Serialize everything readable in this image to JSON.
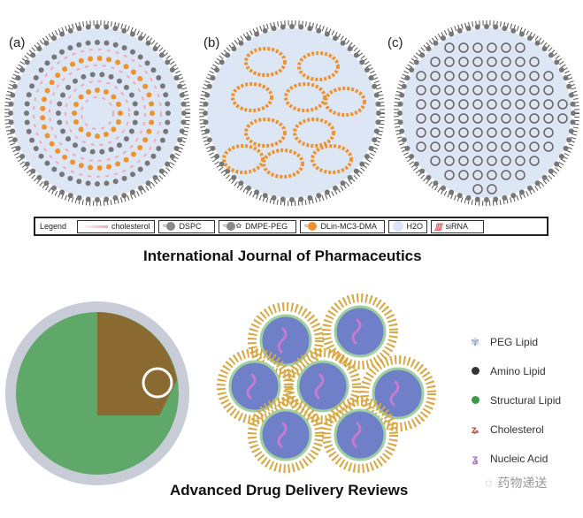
{
  "panels": {
    "a": "(a)",
    "b": "(b)",
    "c": "(c)"
  },
  "legend": {
    "title": "Legend",
    "items": [
      "cholesterol",
      "DSPC",
      "DMPE-PEG",
      "DLin-MC3-DMA",
      "H2O",
      "siRNA"
    ]
  },
  "titles": {
    "top": "International Journal of Pharmaceutics",
    "bottom": "Advanced Drug Delivery Reviews"
  },
  "right_legend": {
    "items": [
      "PEG Lipid",
      "Amino Lipid",
      "Structural Lipid",
      "Cholesterol",
      "Nucleic Acid"
    ]
  },
  "watermark": "药物递送",
  "colors": {
    "water": "#dde6f4",
    "ionizable_lipid": "#f0922b",
    "dspc": "#8a8a8a",
    "cholesterol": "#f4a7b9",
    "sirna": "#e9545c",
    "structural_lipid": "#3a9a4a"
  }
}
